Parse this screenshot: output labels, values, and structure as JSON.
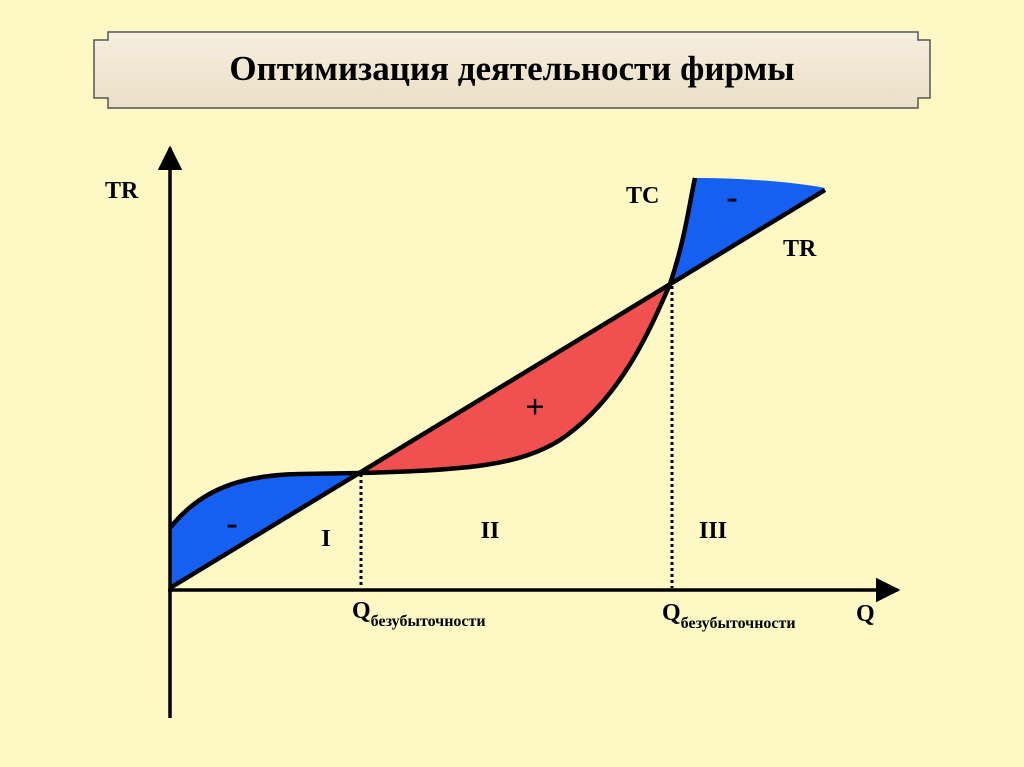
{
  "title": "Оптимизация деятельности фирмы",
  "axes": {
    "y_label": "TR",
    "x_label": "Q"
  },
  "curves": {
    "tc_label": "TC",
    "tr_label": "TR"
  },
  "regions": [
    {
      "label": "I",
      "sign": "-"
    },
    {
      "label": "II",
      "sign": "+"
    },
    {
      "label": "III",
      "sign": "-"
    }
  ],
  "breakeven": [
    {
      "symbol": "Q",
      "subscript": "безубыточности"
    },
    {
      "symbol": "Q",
      "subscript": "безубыточности"
    }
  ]
}
